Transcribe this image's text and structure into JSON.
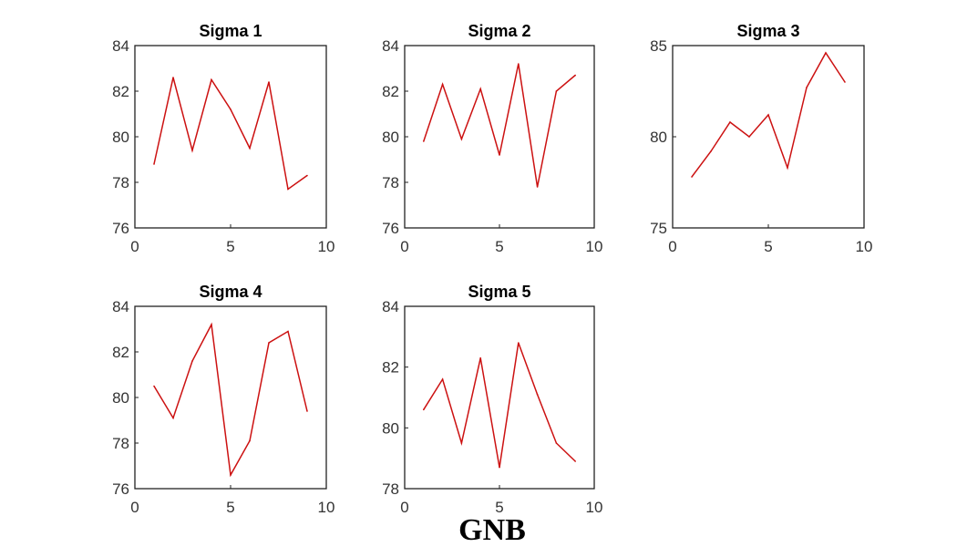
{
  "figure_caption": "GNB",
  "colors": {
    "series": "#cc1111",
    "axes": "#222222",
    "background": "#ffffff"
  },
  "chart_data": [
    {
      "type": "line",
      "title": "Sigma 1",
      "xlim": [
        0,
        10
      ],
      "ylim": [
        76,
        84
      ],
      "xticks": [
        0,
        5,
        10
      ],
      "yticks": [
        76,
        78,
        80,
        82,
        84
      ],
      "grid": false,
      "x": [
        1,
        2,
        3,
        4,
        5,
        6,
        7,
        8,
        9
      ],
      "y": [
        78.8,
        82.6,
        79.4,
        82.5,
        81.2,
        79.5,
        82.4,
        77.7,
        78.3
      ]
    },
    {
      "type": "line",
      "title": "Sigma 2",
      "xlim": [
        0,
        10
      ],
      "ylim": [
        76,
        84
      ],
      "xticks": [
        0,
        5,
        10
      ],
      "yticks": [
        76,
        78,
        80,
        82,
        84
      ],
      "grid": false,
      "x": [
        1,
        2,
        3,
        4,
        5,
        6,
        7,
        8,
        9
      ],
      "y": [
        79.8,
        82.3,
        79.9,
        82.1,
        79.2,
        83.2,
        77.8,
        82.0,
        82.7
      ]
    },
    {
      "type": "line",
      "title": "Sigma 3",
      "xlim": [
        0,
        10
      ],
      "ylim": [
        75,
        85
      ],
      "xticks": [
        0,
        5,
        10
      ],
      "yticks": [
        75,
        80,
        85
      ],
      "grid": false,
      "x": [
        1,
        2,
        3,
        4,
        5,
        6,
        7,
        8,
        9
      ],
      "y": [
        77.8,
        79.2,
        80.8,
        80.0,
        81.2,
        78.3,
        82.7,
        84.6,
        83.0
      ]
    },
    {
      "type": "line",
      "title": "Sigma 4",
      "xlim": [
        0,
        10
      ],
      "ylim": [
        76,
        84
      ],
      "xticks": [
        0,
        5,
        10
      ],
      "yticks": [
        76,
        78,
        80,
        82,
        84
      ],
      "grid": false,
      "x": [
        1,
        2,
        3,
        4,
        5,
        6,
        7,
        8,
        9
      ],
      "y": [
        80.5,
        79.1,
        81.6,
        83.2,
        76.6,
        78.1,
        82.4,
        82.9,
        79.4
      ]
    },
    {
      "type": "line",
      "title": "Sigma 5",
      "xlim": [
        0,
        10
      ],
      "ylim": [
        78,
        84
      ],
      "xticks": [
        0,
        5,
        10
      ],
      "yticks": [
        78,
        80,
        82,
        84
      ],
      "grid": false,
      "x": [
        1,
        2,
        3,
        4,
        5,
        6,
        7,
        8,
        9
      ],
      "y": [
        80.6,
        81.6,
        79.5,
        82.3,
        78.7,
        82.8,
        81.1,
        79.5,
        78.9
      ]
    }
  ]
}
